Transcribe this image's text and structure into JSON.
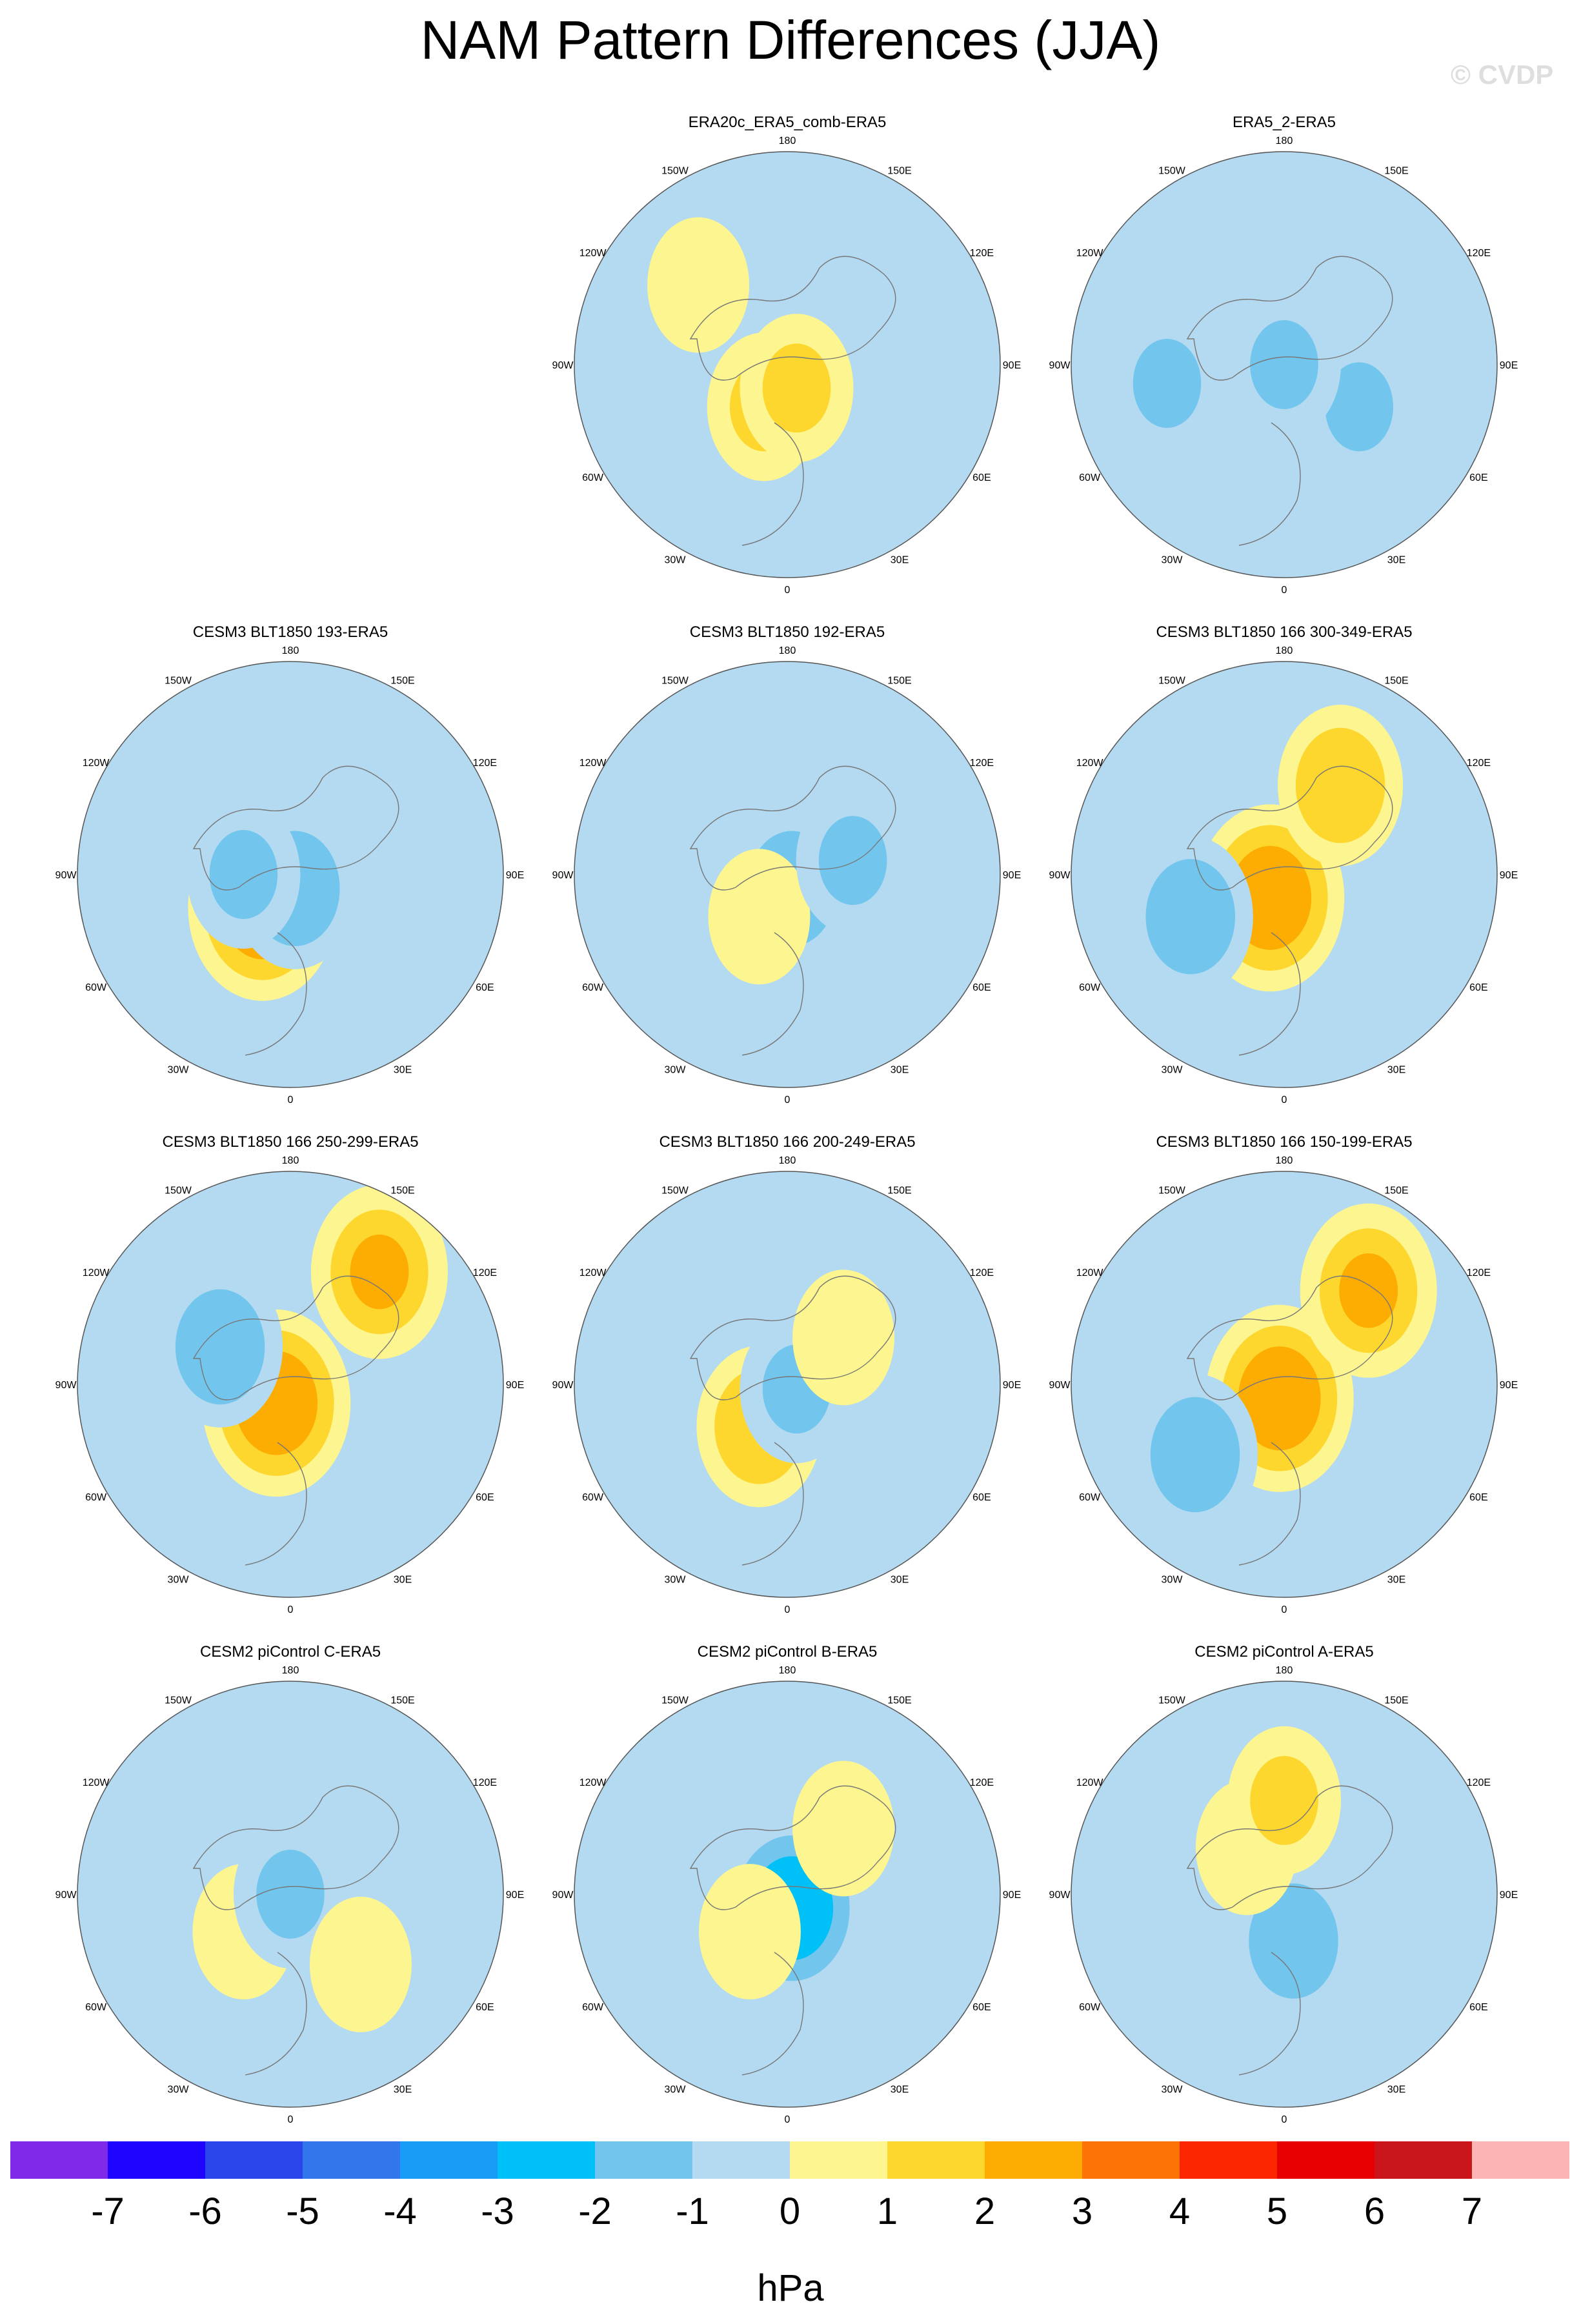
{
  "title": "NAM Pattern Differences (JJA)",
  "credit": "© CVDP",
  "longitude_labels": [
    "180",
    "150E",
    "120E",
    "90E",
    "60E",
    "30E",
    "0",
    "30W",
    "60W",
    "90W",
    "120W",
    "150W"
  ],
  "colors": {
    "land_pos": "#fdf58f",
    "neg": "#b4daf1",
    "coast": "#777777"
  },
  "panels": [
    {
      "title": "ERA20c_ERA5_comb-ERA5",
      "pattern": [
        [
          -5,
          9,
          1
        ],
        [
          -19,
          -17,
          0.5
        ],
        [
          2,
          5,
          1
        ]
      ]
    },
    {
      "title": "ERA5_2-ERA5",
      "pattern": [
        [
          -25,
          4,
          -1
        ],
        [
          16,
          9,
          -1
        ],
        [
          0,
          0,
          -1
        ]
      ]
    },
    {
      "title": "CESM3 BLT1850 193-ERA5",
      "pattern": [
        [
          -6,
          7,
          2.5
        ],
        [
          1,
          3,
          -1.5
        ],
        [
          -10,
          0,
          -1
        ]
      ]
    },
    {
      "title": "CESM3 BLT1850 192-ERA5",
      "pattern": [
        [
          1,
          3,
          -1.5
        ],
        [
          -6,
          9,
          0.5
        ],
        [
          14,
          -3,
          -1
        ]
      ]
    },
    {
      "title": "CESM3 BLT1850 166 300-349-ERA5",
      "pattern": [
        [
          -3,
          5,
          2.5
        ],
        [
          12,
          -19,
          1.5
        ],
        [
          -20,
          9,
          -1.5
        ]
      ]
    },
    {
      "title": "CESM3 BLT1850 166 250-299-ERA5",
      "pattern": [
        [
          -3,
          4,
          2.5
        ],
        [
          19,
          -24,
          2
        ],
        [
          -15,
          -8,
          -1.5
        ]
      ]
    },
    {
      "title": "CESM3 BLT1850 166 200-249-ERA5",
      "pattern": [
        [
          -6,
          9,
          1.5
        ],
        [
          2,
          1,
          -1
        ],
        [
          12,
          -10,
          0.5
        ]
      ]
    },
    {
      "title": "CESM3 BLT1850 166 150-199-ERA5",
      "pattern": [
        [
          -1,
          3,
          2.5
        ],
        [
          18,
          -20,
          2
        ],
        [
          -19,
          15,
          -1.5
        ]
      ]
    },
    {
      "title": "CESM2 piControl C-ERA5",
      "pattern": [
        [
          -10,
          8,
          0.5
        ],
        [
          0,
          0,
          -1
        ],
        [
          15,
          15,
          0.5
        ]
      ]
    },
    {
      "title": "CESM2 piControl B-ERA5",
      "pattern": [
        [
          1,
          3,
          -2.5
        ],
        [
          -8,
          8,
          0.5
        ],
        [
          12,
          -14,
          0.5
        ]
      ]
    },
    {
      "title": "CESM2 piControl A-ERA5",
      "pattern": [
        [
          2,
          10,
          -1.5
        ],
        [
          -8,
          -10,
          0.5
        ],
        [
          0,
          -20,
          1
        ]
      ]
    }
  ],
  "colorbar": {
    "unit": "hPa",
    "tick_labels": [
      "-7",
      "-6",
      "-5",
      "-4",
      "-3",
      "-2",
      "-1",
      "0",
      "1",
      "2",
      "3",
      "4",
      "5",
      "6",
      "7"
    ],
    "colors": [
      "#7f2ae9",
      "#1f04ff",
      "#2a46eb",
      "#3375eb",
      "#199bf8",
      "#00c0f8",
      "#72c6ee",
      "#b4daf1",
      "#fdf58f",
      "#fdd72d",
      "#fdad02",
      "#fe7303",
      "#fc2700",
      "#e60002",
      "#ca161b",
      "#fcb5b4"
    ]
  }
}
